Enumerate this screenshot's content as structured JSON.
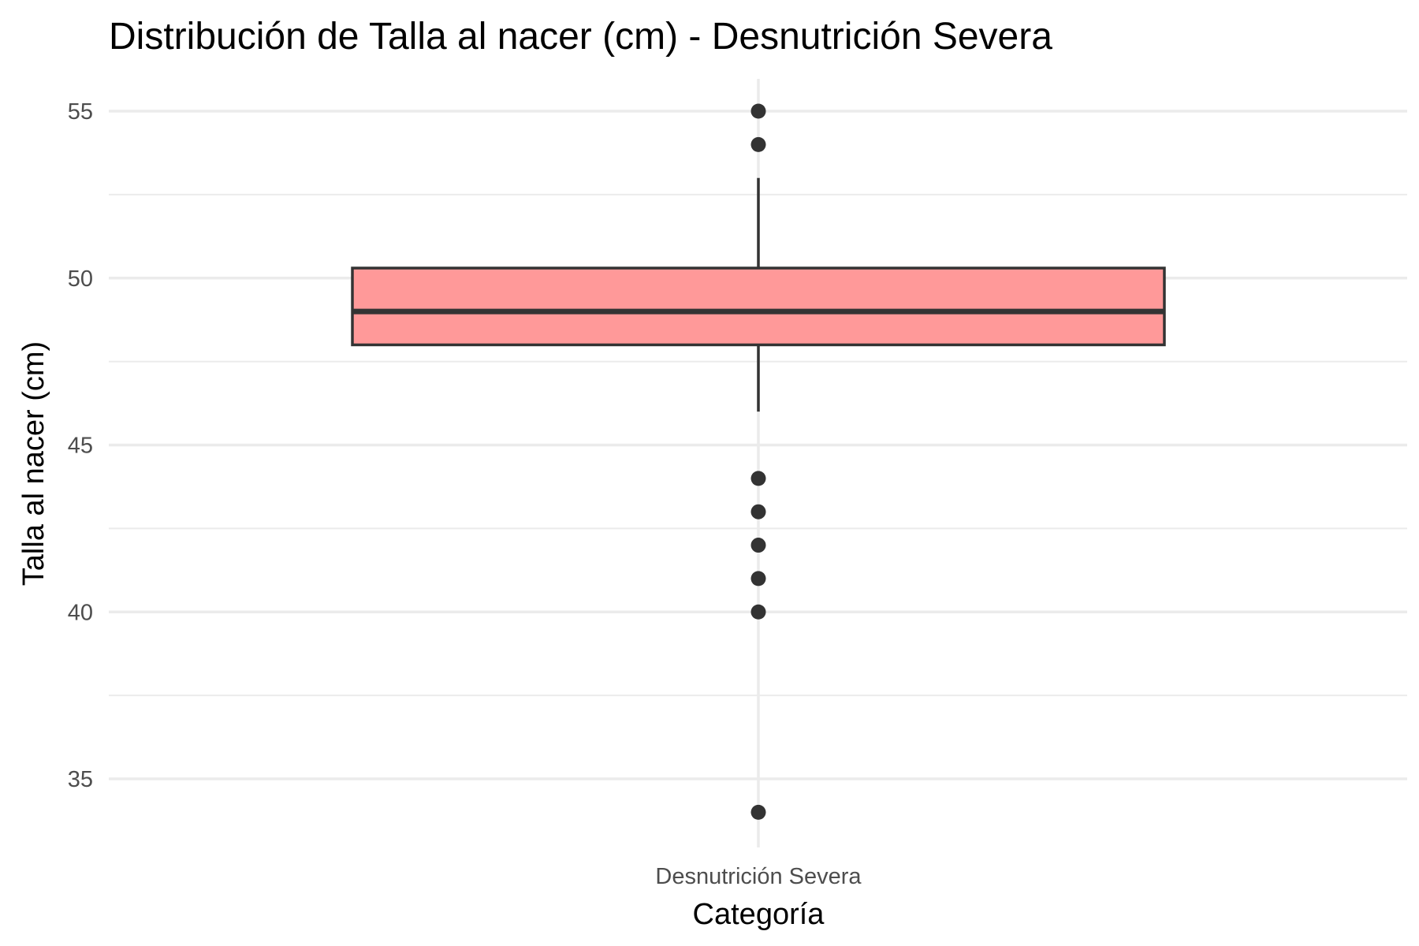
{
  "chart_data": {
    "type": "box",
    "title": "Distribución de Talla al nacer (cm) - Desnutrición Severa",
    "xlabel": "Categoría",
    "ylabel": "Talla al nacer (cm)",
    "categories": [
      "Desnutrición Severa"
    ],
    "ylim": [
      33,
      56
    ],
    "yticks": [
      35,
      40,
      45,
      50,
      55
    ],
    "grid": true,
    "box": {
      "whisker_low": 46,
      "q1": 48,
      "median": 49,
      "q3": 50.3,
      "whisker_high": 53
    },
    "outliers": [
      55,
      54,
      44,
      43,
      42,
      41,
      40,
      34
    ],
    "colors": {
      "box_fill": "#ff9999",
      "box_stroke": "#333333",
      "points": "#333333"
    }
  }
}
